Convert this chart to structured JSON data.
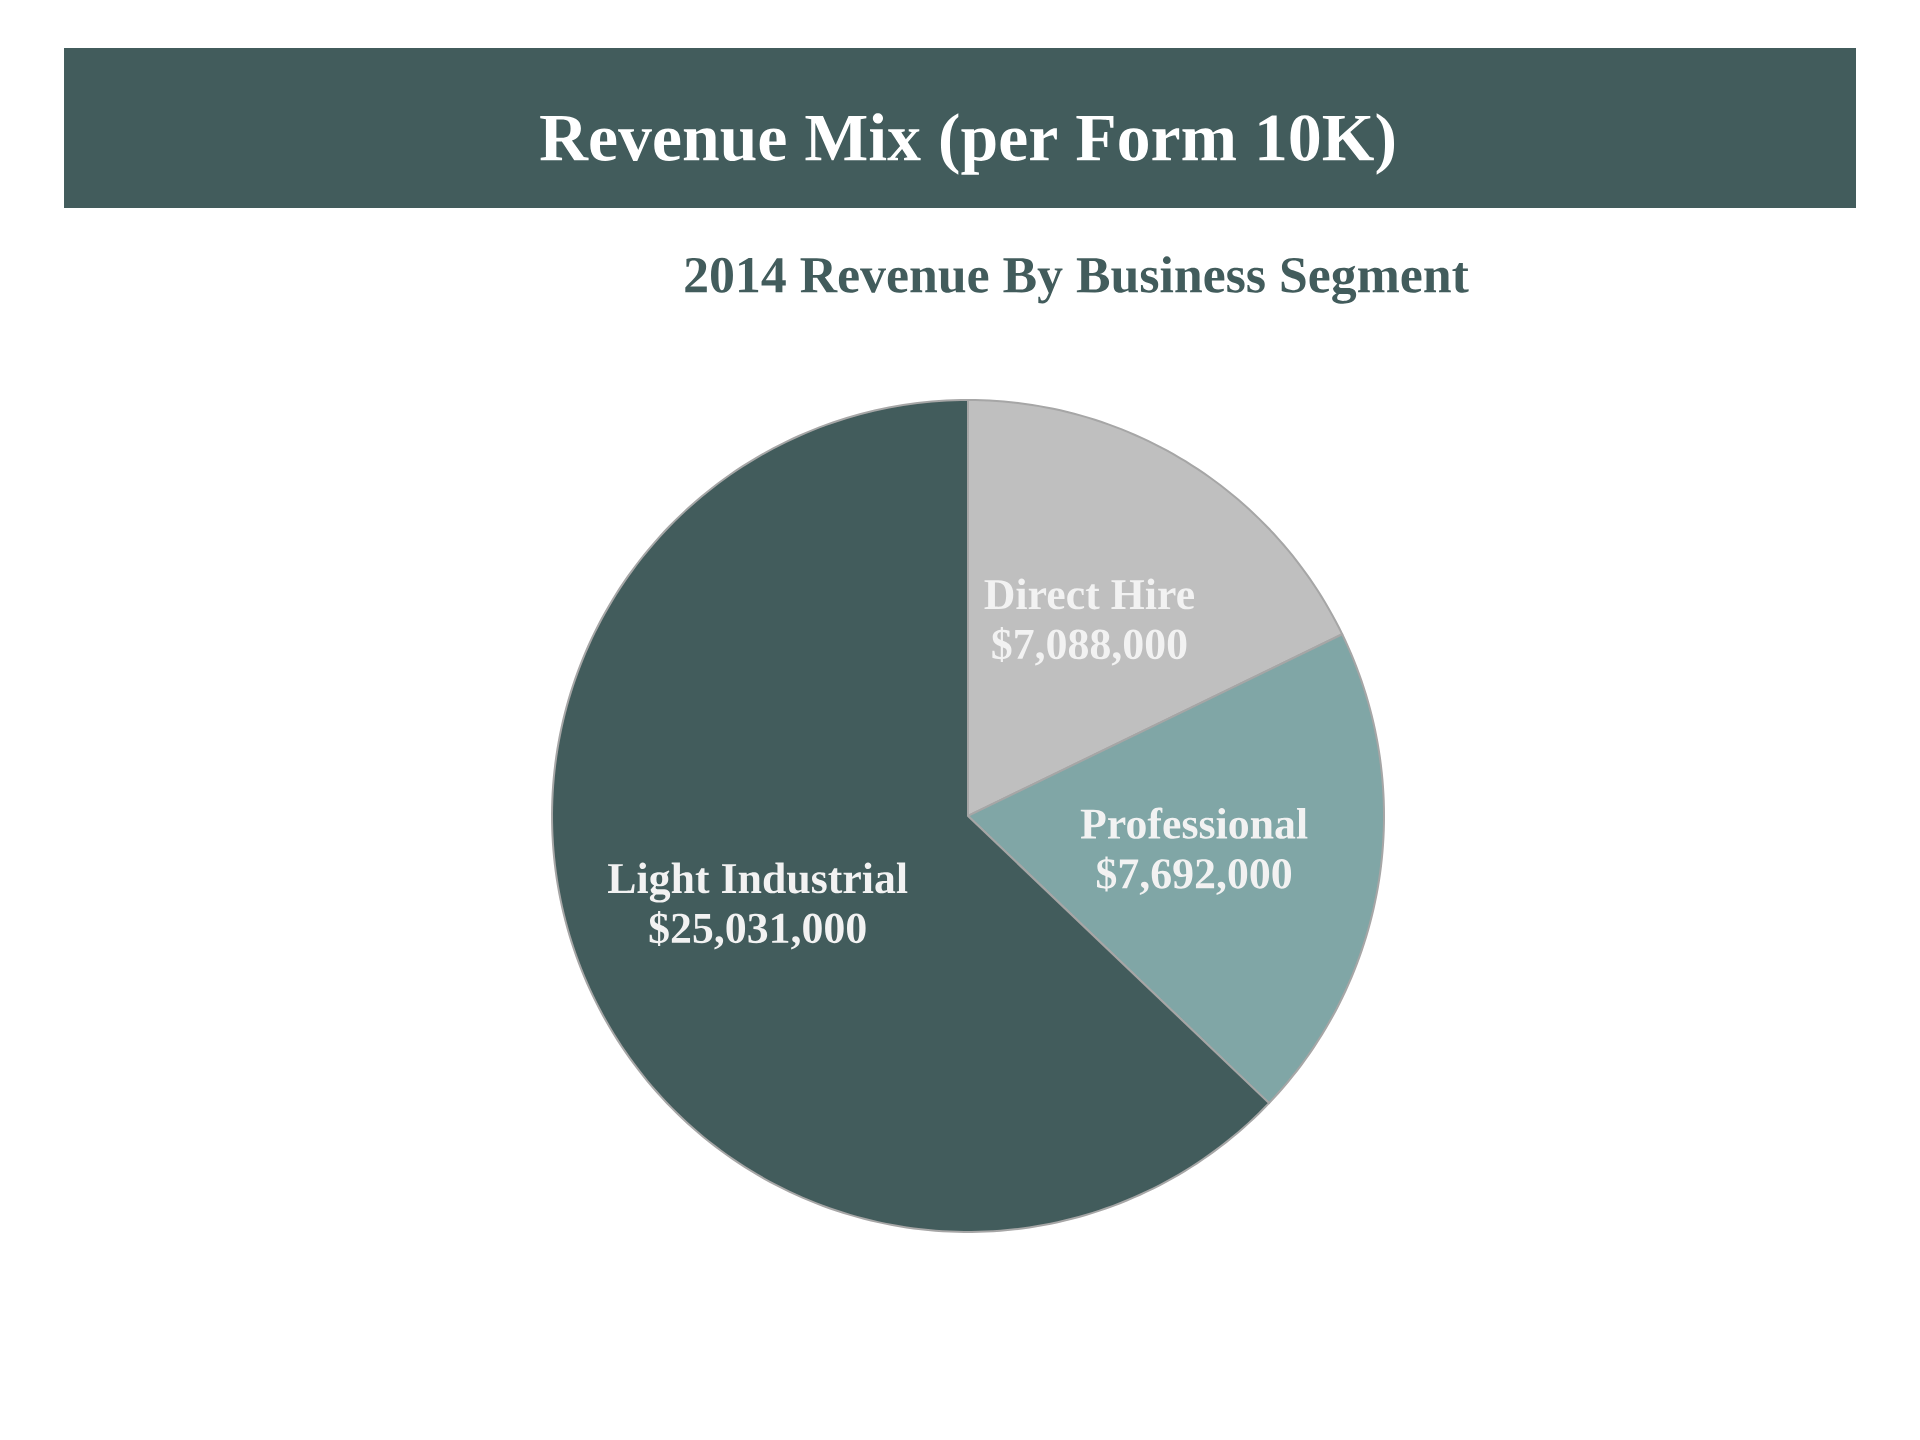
{
  "chart_data": {
    "type": "pie",
    "title": "Revenue Mix (per Form 10K)",
    "subtitle": "2014 Revenue By Business Segment",
    "categories": [
      "Direct Hire",
      "Professional",
      "Light Industrial"
    ],
    "values": [
      7088000,
      7692000,
      25031000
    ],
    "value_labels": [
      "$7,088,000",
      "$7,692,000",
      "$25,031,000"
    ],
    "colors": [
      "#bfbfbf",
      "#80a6a6",
      "#425c5c"
    ]
  }
}
